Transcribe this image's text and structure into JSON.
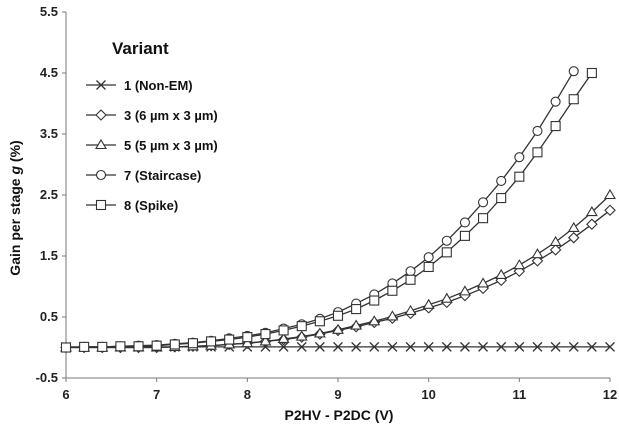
{
  "chart_data": {
    "type": "line",
    "xlabel": "P2HV - P2DC (V)",
    "ylabel_main": "Gain per stage ",
    "ylabel_var": "g",
    "ylabel_unit": " (%)",
    "xlim": [
      6,
      12
    ],
    "ylim": [
      -0.5,
      5.5
    ],
    "xticks": [
      6,
      7,
      8,
      9,
      10,
      11,
      12
    ],
    "yticks": [
      -0.5,
      0.5,
      1.5,
      2.5,
      3.5,
      4.5,
      5.5
    ],
    "grid": false,
    "legend_title": "Variant",
    "legend_position": "top-left",
    "series": [
      {
        "name": "1 (Non-EM)",
        "marker": "x",
        "color": "#333333",
        "x": [
          6.0,
          6.2,
          6.4,
          6.6,
          6.8,
          7.0,
          7.2,
          7.4,
          7.6,
          7.8,
          8.0,
          8.2,
          8.4,
          8.6,
          8.8,
          9.0,
          9.2,
          9.4,
          9.6,
          9.8,
          10.0,
          10.2,
          10.4,
          10.6,
          10.8,
          11.0,
          11.2,
          11.4,
          11.6,
          11.8,
          12.0
        ],
        "y": [
          0.01,
          0.01,
          0.01,
          0.01,
          0.01,
          0.01,
          0.01,
          0.01,
          0.01,
          0.01,
          0.01,
          0.01,
          0.01,
          0.01,
          0.01,
          0.01,
          0.01,
          0.01,
          0.01,
          0.01,
          0.01,
          0.01,
          0.01,
          0.01,
          0.01,
          0.01,
          0.01,
          0.01,
          0.01,
          0.01,
          0.01
        ]
      },
      {
        "name": "3 (6 µm x 3 µm)",
        "marker": "diamond",
        "color": "#333333",
        "x": [
          6.0,
          6.2,
          6.4,
          6.6,
          6.8,
          7.0,
          7.2,
          7.4,
          7.6,
          7.8,
          8.0,
          8.2,
          8.4,
          8.6,
          8.8,
          9.0,
          9.2,
          9.4,
          9.6,
          9.8,
          10.0,
          10.2,
          10.4,
          10.6,
          10.8,
          11.0,
          11.2,
          11.4,
          11.6,
          11.8,
          12.0
        ],
        "y": [
          0.0,
          0.0,
          0.0,
          0.0,
          0.0,
          0.0,
          0.01,
          0.02,
          0.03,
          0.05,
          0.07,
          0.1,
          0.13,
          0.17,
          0.22,
          0.28,
          0.34,
          0.41,
          0.48,
          0.56,
          0.65,
          0.74,
          0.85,
          0.97,
          1.1,
          1.25,
          1.42,
          1.6,
          1.8,
          2.02,
          2.25
        ]
      },
      {
        "name": "5 (5 µm x 3 µm)",
        "marker": "triangle",
        "color": "#333333",
        "x": [
          6.0,
          6.2,
          6.4,
          6.6,
          6.8,
          7.0,
          7.2,
          7.4,
          7.6,
          7.8,
          8.0,
          8.2,
          8.4,
          8.6,
          8.8,
          9.0,
          9.2,
          9.4,
          9.6,
          9.8,
          10.0,
          10.2,
          10.4,
          10.6,
          10.8,
          11.0,
          11.2,
          11.4,
          11.6,
          11.8,
          12.0
        ],
        "y": [
          0.0,
          0.0,
          0.0,
          0.0,
          0.0,
          0.0,
          0.01,
          0.02,
          0.03,
          0.05,
          0.07,
          0.1,
          0.14,
          0.18,
          0.23,
          0.29,
          0.36,
          0.43,
          0.51,
          0.6,
          0.7,
          0.8,
          0.92,
          1.05,
          1.19,
          1.35,
          1.53,
          1.73,
          1.96,
          2.22,
          2.5
        ]
      },
      {
        "name": "7 (Staircase)",
        "marker": "circle",
        "color": "#333333",
        "x": [
          6.0,
          6.2,
          6.4,
          6.6,
          6.8,
          7.0,
          7.2,
          7.4,
          7.6,
          7.8,
          8.0,
          8.2,
          8.4,
          8.6,
          8.8,
          9.0,
          9.2,
          9.4,
          9.6,
          9.8,
          10.0,
          10.2,
          10.4,
          10.6,
          10.8,
          11.0,
          11.2,
          11.4,
          11.6
        ],
        "y": [
          0.0,
          0.01,
          0.01,
          0.02,
          0.03,
          0.04,
          0.06,
          0.08,
          0.11,
          0.15,
          0.19,
          0.24,
          0.31,
          0.38,
          0.47,
          0.58,
          0.72,
          0.87,
          1.05,
          1.25,
          1.48,
          1.75,
          2.05,
          2.38,
          2.73,
          3.12,
          3.55,
          4.03,
          4.53
        ]
      },
      {
        "name": "8 (Spike)",
        "marker": "square",
        "color": "#333333",
        "x": [
          6.0,
          6.2,
          6.4,
          6.6,
          6.8,
          7.0,
          7.2,
          7.4,
          7.6,
          7.8,
          8.0,
          8.2,
          8.4,
          8.6,
          8.8,
          9.0,
          9.2,
          9.4,
          9.6,
          9.8,
          10.0,
          10.2,
          10.4,
          10.6,
          10.8,
          11.0,
          11.2,
          11.4,
          11.6,
          11.8
        ],
        "y": [
          0.0,
          0.01,
          0.01,
          0.02,
          0.02,
          0.03,
          0.05,
          0.07,
          0.1,
          0.13,
          0.17,
          0.22,
          0.28,
          0.35,
          0.43,
          0.52,
          0.63,
          0.77,
          0.93,
          1.11,
          1.32,
          1.56,
          1.83,
          2.12,
          2.45,
          2.8,
          3.2,
          3.63,
          4.07,
          4.5
        ]
      }
    ]
  }
}
